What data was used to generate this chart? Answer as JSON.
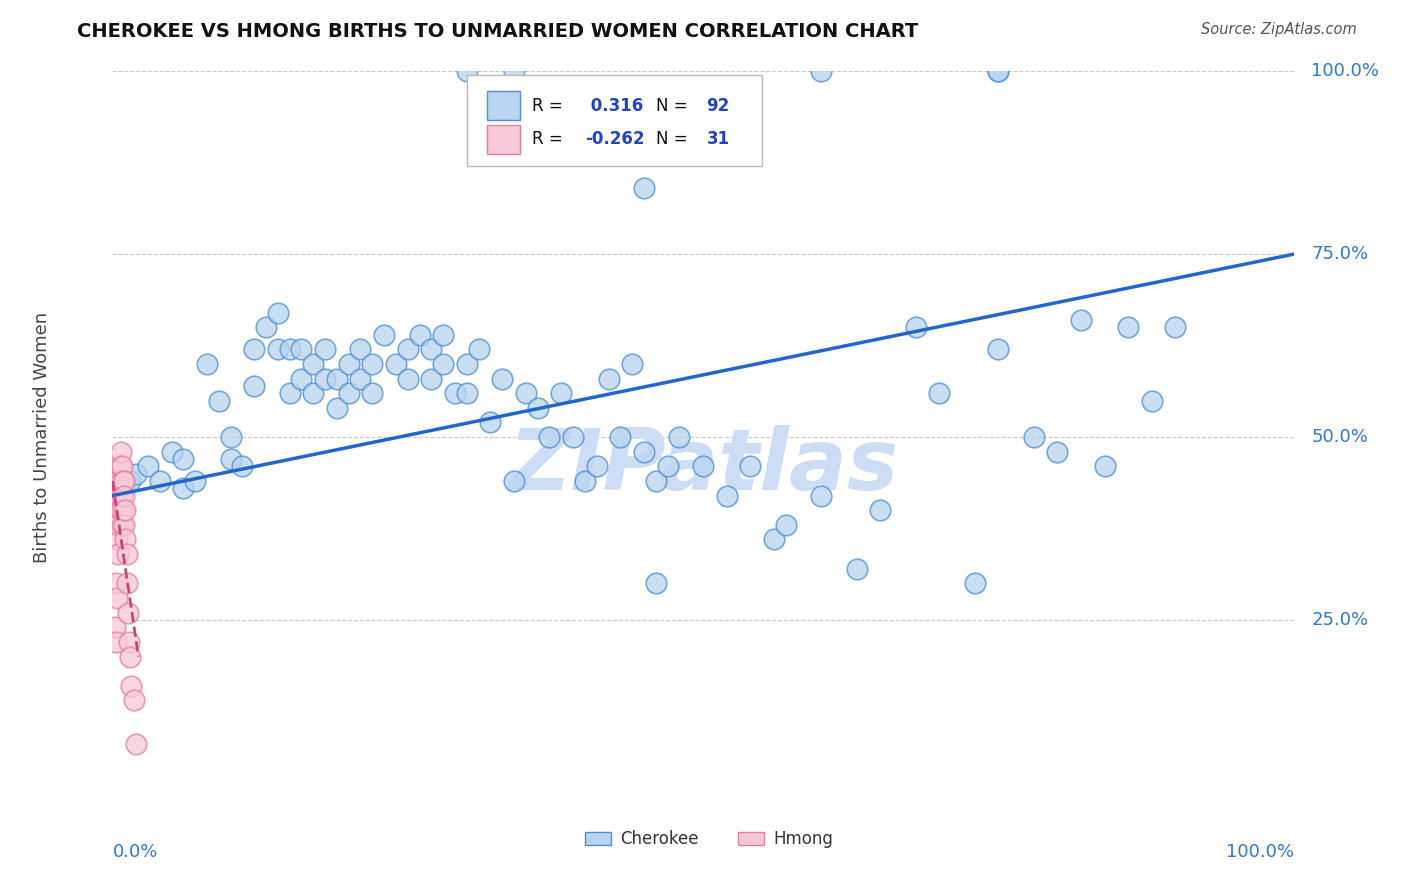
{
  "title": "CHEROKEE VS HMONG BIRTHS TO UNMARRIED WOMEN CORRELATION CHART",
  "source": "Source: ZipAtlas.com",
  "ylabel": "Births to Unmarried Women",
  "watermark": "ZIPatlas",
  "cherokee_R": 0.316,
  "cherokee_N": 92,
  "hmong_R": -0.262,
  "hmong_N": 31,
  "cherokee_color": "#b8d4f0",
  "cherokee_edge_color": "#5090d0",
  "cherokee_line_color": "#2266cc",
  "hmong_color": "#f8c8d8",
  "hmong_edge_color": "#e080a0",
  "hmong_line_color": "#cc4477",
  "background_color": "#ffffff",
  "grid_color": "#c8c8c8",
  "title_color": "#111111",
  "axis_label_color": "#3377cc",
  "legend_label_color": "#111111",
  "legend_value_color": "#2244bb",
  "watermark_color": "#ccddf5",
  "cherokee_x": [
    0.005,
    0.01,
    0.015,
    0.02,
    0.03,
    0.04,
    0.05,
    0.06,
    0.06,
    0.07,
    0.08,
    0.09,
    0.1,
    0.1,
    0.11,
    0.12,
    0.12,
    0.13,
    0.14,
    0.14,
    0.15,
    0.15,
    0.16,
    0.16,
    0.17,
    0.17,
    0.18,
    0.18,
    0.19,
    0.19,
    0.2,
    0.2,
    0.21,
    0.21,
    0.22,
    0.22,
    0.23,
    0.24,
    0.25,
    0.25,
    0.26,
    0.27,
    0.27,
    0.28,
    0.28,
    0.29,
    0.3,
    0.3,
    0.31,
    0.32,
    0.33,
    0.34,
    0.35,
    0.36,
    0.37,
    0.38,
    0.39,
    0.4,
    0.41,
    0.42,
    0.43,
    0.44,
    0.45,
    0.46,
    0.47,
    0.48,
    0.5,
    0.52,
    0.54,
    0.56,
    0.45,
    0.57,
    0.6,
    0.63,
    0.65,
    0.68,
    0.7,
    0.73,
    0.75,
    0.78,
    0.8,
    0.82,
    0.84,
    0.86,
    0.88,
    0.9,
    0.3,
    0.34,
    0.6,
    0.75,
    0.46,
    0.75
  ],
  "cherokee_y": [
    0.44,
    0.43,
    0.44,
    0.45,
    0.46,
    0.44,
    0.48,
    0.43,
    0.47,
    0.44,
    0.6,
    0.55,
    0.47,
    0.5,
    0.46,
    0.62,
    0.57,
    0.65,
    0.67,
    0.62,
    0.56,
    0.62,
    0.58,
    0.62,
    0.56,
    0.6,
    0.62,
    0.58,
    0.58,
    0.54,
    0.56,
    0.6,
    0.58,
    0.62,
    0.56,
    0.6,
    0.64,
    0.6,
    0.62,
    0.58,
    0.64,
    0.58,
    0.62,
    0.6,
    0.64,
    0.56,
    0.6,
    0.56,
    0.62,
    0.52,
    0.58,
    0.44,
    0.56,
    0.54,
    0.5,
    0.56,
    0.5,
    0.44,
    0.46,
    0.58,
    0.5,
    0.6,
    0.48,
    0.44,
    0.46,
    0.5,
    0.46,
    0.42,
    0.46,
    0.36,
    0.84,
    0.38,
    0.42,
    0.32,
    0.4,
    0.65,
    0.56,
    0.3,
    0.62,
    0.5,
    0.48,
    0.66,
    0.46,
    0.65,
    0.55,
    0.65,
    1.0,
    1.0,
    1.0,
    1.0,
    0.3,
    1.0
  ],
  "hmong_x": [
    0.002,
    0.003,
    0.003,
    0.004,
    0.004,
    0.005,
    0.005,
    0.005,
    0.006,
    0.006,
    0.007,
    0.007,
    0.007,
    0.008,
    0.008,
    0.008,
    0.009,
    0.009,
    0.01,
    0.01,
    0.01,
    0.011,
    0.011,
    0.012,
    0.012,
    0.013,
    0.014,
    0.015,
    0.016,
    0.018,
    0.02
  ],
  "hmong_y": [
    0.24,
    0.3,
    0.22,
    0.28,
    0.36,
    0.42,
    0.38,
    0.34,
    0.42,
    0.46,
    0.48,
    0.44,
    0.4,
    0.46,
    0.42,
    0.38,
    0.44,
    0.4,
    0.44,
    0.38,
    0.42,
    0.36,
    0.4,
    0.34,
    0.3,
    0.26,
    0.22,
    0.2,
    0.16,
    0.14,
    0.08
  ],
  "xlim": [
    0.0,
    1.0
  ],
  "ylim": [
    0.0,
    1.0
  ],
  "cher_line_x0": 0.0,
  "cher_line_y0": 0.42,
  "cher_line_x1": 1.0,
  "cher_line_y1": 0.75,
  "hmong_line_x0": 0.0,
  "hmong_line_y0": 0.44,
  "hmong_line_x1": 0.022,
  "hmong_line_y1": 0.2
}
